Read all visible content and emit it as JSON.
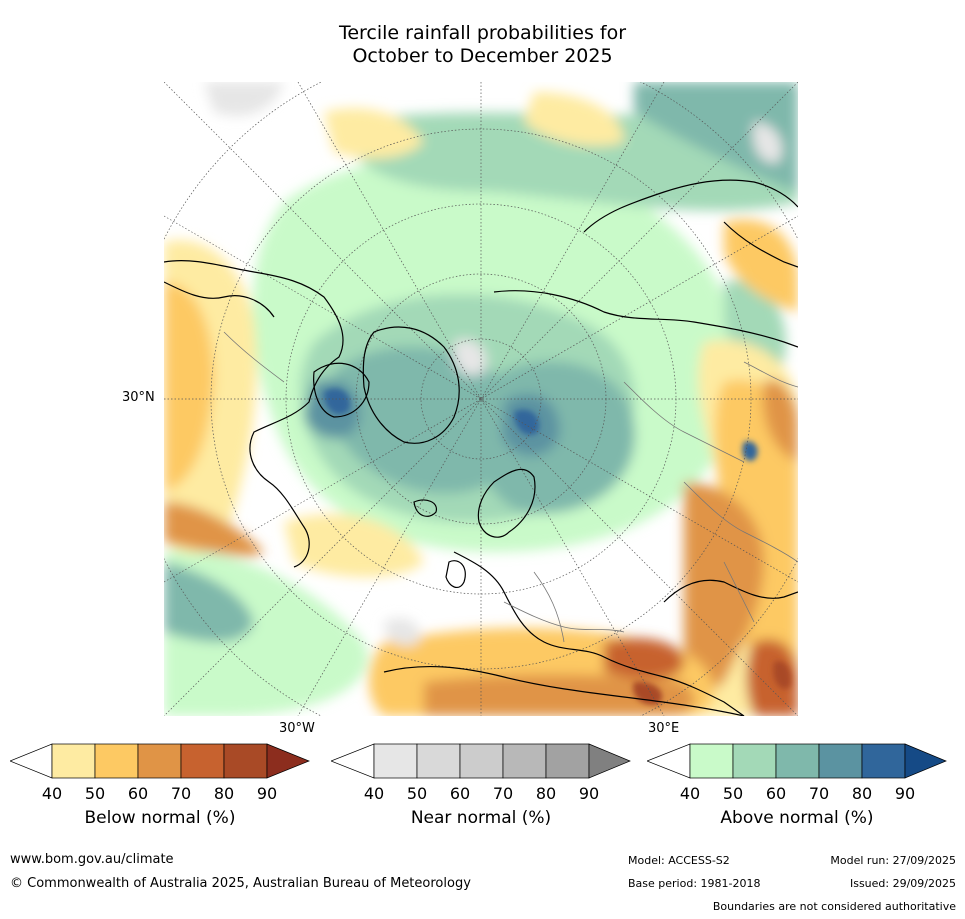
{
  "title": {
    "line1": "Tercile rainfall probabilities for",
    "line2": "October to December 2025"
  },
  "map": {
    "projection": "north-polar-stereographic",
    "lat_label": "30°N",
    "lon_label_left": "30°W",
    "lon_label_right": "30°E"
  },
  "legends": [
    {
      "label": "Below normal (%)",
      "ticks": [
        "40",
        "50",
        "60",
        "70",
        "80",
        "90"
      ],
      "colors": [
        "#ffffff",
        "#feeba2",
        "#fdc963",
        "#e09446",
        "#c7622f",
        "#a94a26",
        "#8c2d1e"
      ]
    },
    {
      "label": "Near normal (%)",
      "ticks": [
        "40",
        "50",
        "60",
        "70",
        "80",
        "90"
      ],
      "colors": [
        "#ffffff",
        "#e6e6e6",
        "#d9d9d9",
        "#cccccc",
        "#b8b8b8",
        "#a2a2a2",
        "#808080"
      ]
    },
    {
      "label": "Above normal (%)",
      "ticks": [
        "40",
        "50",
        "60",
        "70",
        "80",
        "90"
      ],
      "colors": [
        "#ffffff",
        "#c9fac9",
        "#a3d9b7",
        "#7fb8ab",
        "#5b93a1",
        "#30669b",
        "#154a86"
      ]
    }
  ],
  "footer": {
    "website": "www.bom.gov.au/climate",
    "copyright": "© Commonwealth of Australia 2025, Australian Bureau of Meteorology",
    "model": "Model: ACCESS-S2",
    "base_period": "Base period: 1981-2018",
    "model_run": "Model run: 27/09/2025",
    "issued": "Issued: 29/09/2025",
    "disclaimer": "Boundaries are not considered authoritative"
  }
}
